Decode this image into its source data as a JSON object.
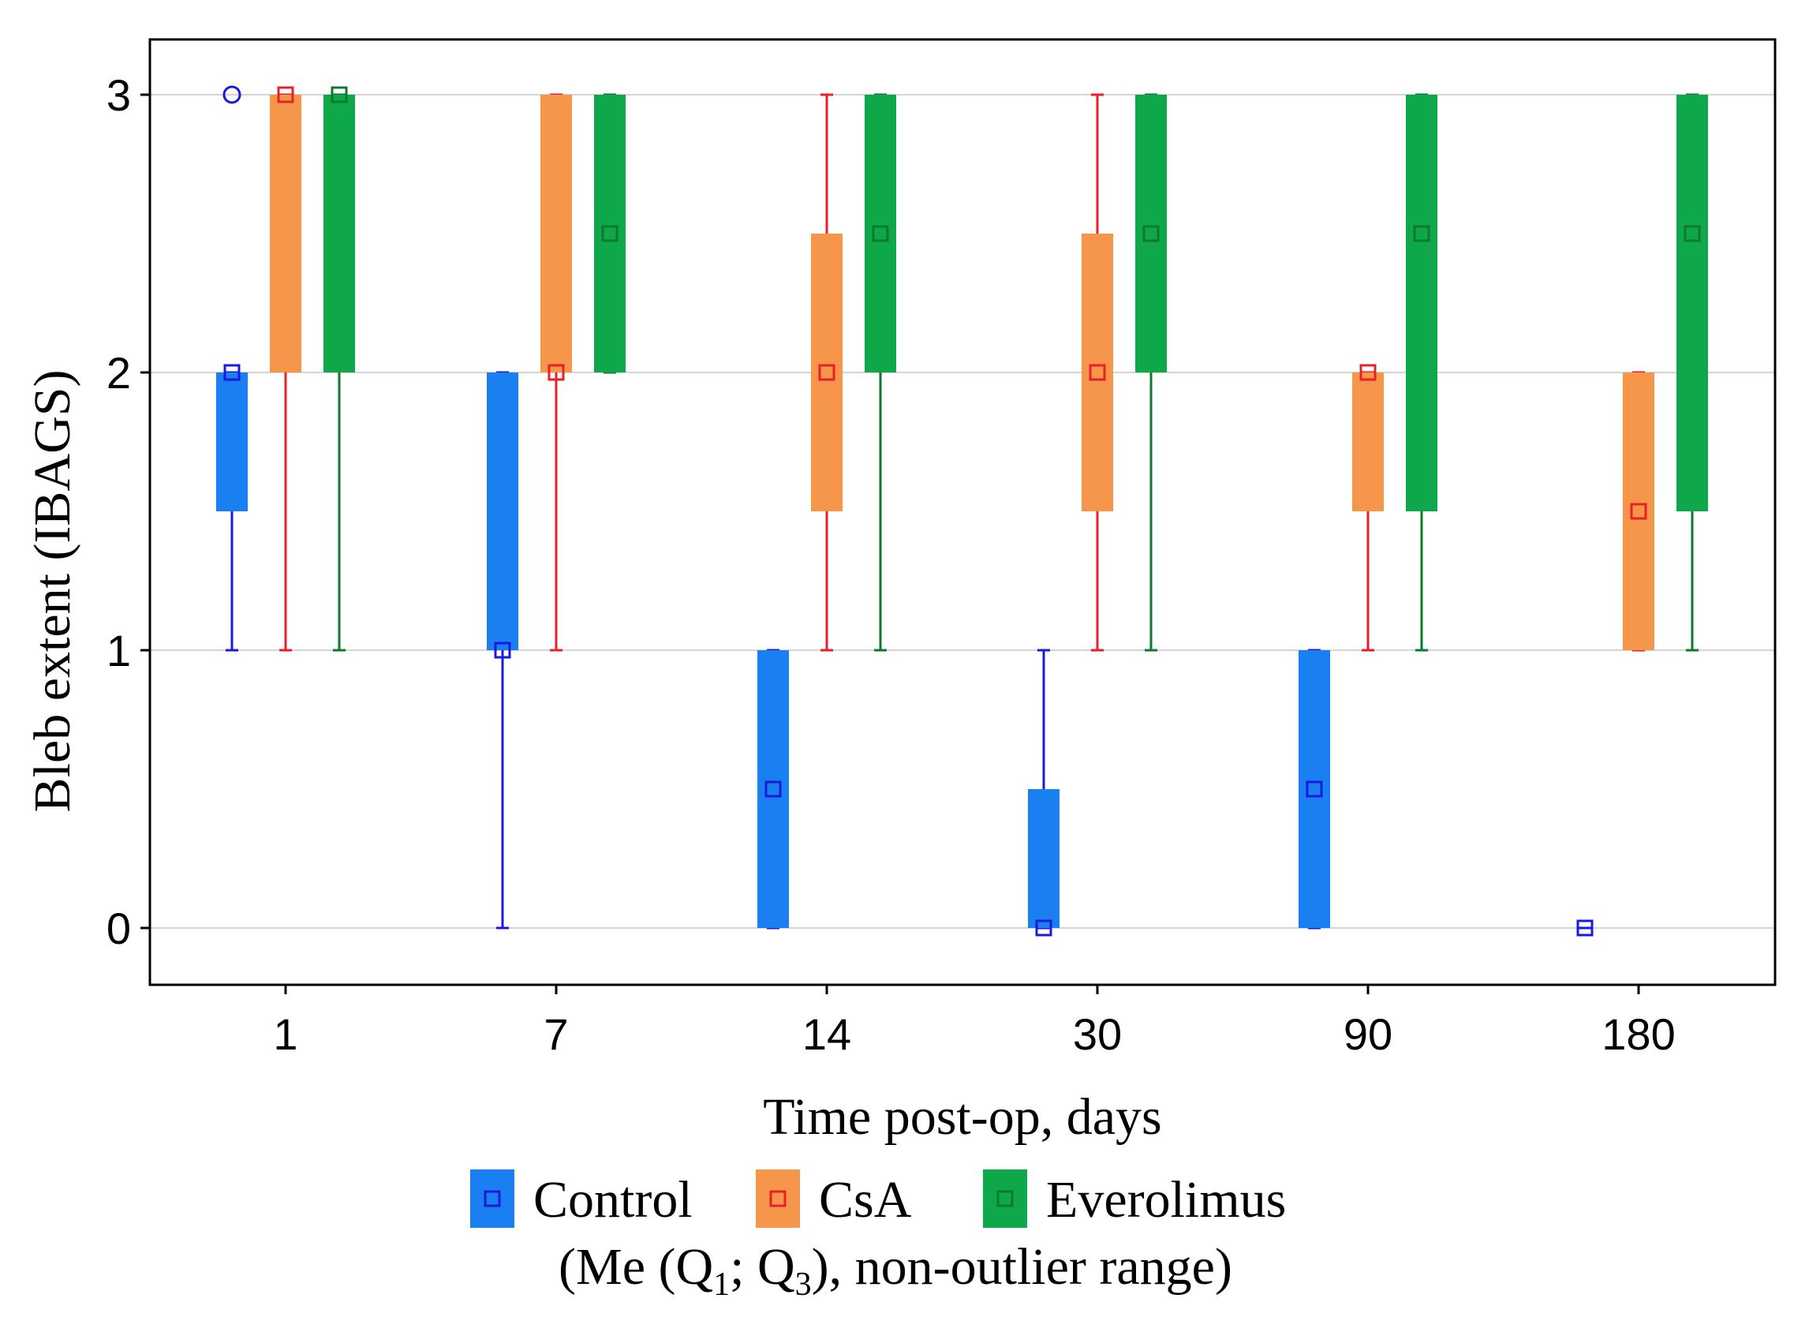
{
  "chart_data": {
    "type": "boxplot",
    "title": "",
    "xlabel": "Time post-op, days",
    "ylabel": "Bleb extent (IBAGS)",
    "ylim": [
      -0.2,
      3.2
    ],
    "yticks": [
      0,
      1,
      2,
      3
    ],
    "categories": [
      "1",
      "7",
      "14",
      "30",
      "90",
      "180"
    ],
    "grid": true,
    "legend": {
      "placement": "bottom",
      "note_prefix": "(Me (Q",
      "note_sub1": "1",
      "note_mid": "; Q",
      "note_sub3": "3",
      "note_suffix": "), non-outlier range)"
    },
    "series": [
      {
        "name": "Control",
        "color": "#1a7ff0",
        "marker_color": "#1a1adc",
        "stats": [
          {
            "median": 2,
            "q1": 1.5,
            "q3": 2,
            "min": 1,
            "max": 2,
            "outliers": [
              3
            ]
          },
          {
            "median": 1,
            "q1": 1,
            "q3": 2,
            "min": 0,
            "max": 2,
            "outliers": []
          },
          {
            "median": 0.5,
            "q1": 0,
            "q3": 1,
            "min": 0,
            "max": 1,
            "outliers": []
          },
          {
            "median": 0,
            "q1": 0,
            "q3": 0.5,
            "min": 0,
            "max": 1,
            "outliers": []
          },
          {
            "median": 0.5,
            "q1": 0,
            "q3": 1,
            "min": 0,
            "max": 1,
            "outliers": []
          },
          {
            "median": 0,
            "q1": 0,
            "q3": 0,
            "min": 0,
            "max": 0,
            "outliers": []
          }
        ]
      },
      {
        "name": "CsA",
        "color": "#f5964a",
        "marker_color": "#e8202a",
        "stats": [
          {
            "median": 3,
            "q1": 2,
            "q3": 3,
            "min": 1,
            "max": 3,
            "outliers": []
          },
          {
            "median": 2,
            "q1": 2,
            "q3": 3,
            "min": 1,
            "max": 3,
            "outliers": []
          },
          {
            "median": 2,
            "q1": 1.5,
            "q3": 2.5,
            "min": 1,
            "max": 3,
            "outliers": []
          },
          {
            "median": 2,
            "q1": 1.5,
            "q3": 2.5,
            "min": 1,
            "max": 3,
            "outliers": []
          },
          {
            "median": 2,
            "q1": 1.5,
            "q3": 2,
            "min": 1,
            "max": 2,
            "outliers": []
          },
          {
            "median": 1.5,
            "q1": 1,
            "q3": 2,
            "min": 1,
            "max": 2,
            "outliers": []
          }
        ]
      },
      {
        "name": "Everolimus",
        "color": "#0ea84a",
        "marker_color": "#0c7a2a",
        "stats": [
          {
            "median": 3,
            "q1": 2,
            "q3": 3,
            "min": 1,
            "max": 3,
            "outliers": []
          },
          {
            "median": 2.5,
            "q1": 2,
            "q3": 3,
            "min": 2,
            "max": 3,
            "outliers": []
          },
          {
            "median": 2.5,
            "q1": 2,
            "q3": 3,
            "min": 1,
            "max": 3,
            "outliers": []
          },
          {
            "median": 2.5,
            "q1": 2,
            "q3": 3,
            "min": 1,
            "max": 3,
            "outliers": []
          },
          {
            "median": 2.5,
            "q1": 1.5,
            "q3": 3,
            "min": 1,
            "max": 3,
            "outliers": []
          },
          {
            "median": 2.5,
            "q1": 1.5,
            "q3": 3,
            "min": 1,
            "max": 3,
            "outliers": []
          }
        ]
      }
    ]
  }
}
